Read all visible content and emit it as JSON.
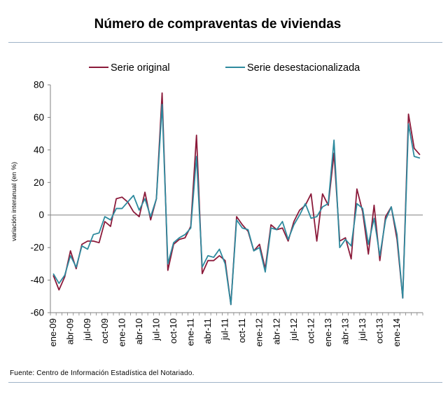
{
  "title": "Número de compraventas de viviendas",
  "source": "Fuente: Centro de Información Estadística del Notariado.",
  "chart_data": {
    "type": "line",
    "ylabel": "variación interanual (en %)",
    "xlabel": "",
    "ylim": [
      -60,
      80
    ],
    "yticks": [
      -60,
      -40,
      -20,
      0,
      20,
      40,
      60,
      80
    ],
    "grid": false,
    "legend": "top",
    "x_tick_labels": [
      "ene-09",
      "abr-09",
      "jul-09",
      "oct-09",
      "ene-10",
      "abr-10",
      "jul-10",
      "oct-10",
      "ene-11",
      "abr-11",
      "jul-11",
      "oct-11",
      "ene-12",
      "abr-12",
      "jul-12",
      "oct-12",
      "ene-13",
      "abr-13",
      "jul-13",
      "oct-13",
      "ene-14"
    ],
    "x_tick_every": 3,
    "series": [
      {
        "name": "Serie original",
        "color": "#8b1a3a",
        "values": [
          -37,
          -46,
          -38,
          -22,
          -33,
          -18,
          -16,
          -16,
          -17,
          -4,
          -7,
          10,
          11,
          8,
          2,
          -1,
          14,
          -3,
          10,
          75,
          -34,
          -18,
          -15,
          -14,
          -7,
          49,
          -36,
          -28,
          -28,
          -25,
          -28,
          -55,
          -1,
          -6,
          -10,
          -22,
          -18,
          -33,
          -6,
          -9,
          -8,
          -16,
          -4,
          3,
          6,
          13,
          -16,
          13,
          6,
          38,
          -16,
          -14,
          -27,
          16,
          2,
          -24,
          6,
          -28,
          -1,
          5,
          -15,
          -51,
          62,
          41,
          37
        ]
      },
      {
        "name": "Serie desestacionalizada",
        "color": "#2e8a9e",
        "values": [
          -36,
          -42,
          -37,
          -25,
          -32,
          -19,
          -21,
          -12,
          -11,
          -1,
          -3,
          4,
          4,
          8,
          12,
          3,
          10,
          -1,
          10,
          68,
          -30,
          -17,
          -14,
          -12,
          -8,
          36,
          -32,
          -25,
          -26,
          -21,
          -30,
          -55,
          -3,
          -8,
          -9,
          -22,
          -20,
          -35,
          -8,
          -9,
          -4,
          -15,
          -6,
          0,
          7,
          -2,
          -1,
          5,
          7,
          46,
          -20,
          -15,
          -19,
          7,
          4,
          -18,
          -2,
          -25,
          -3,
          5,
          -12,
          -51,
          56,
          36,
          35
        ]
      }
    ]
  }
}
